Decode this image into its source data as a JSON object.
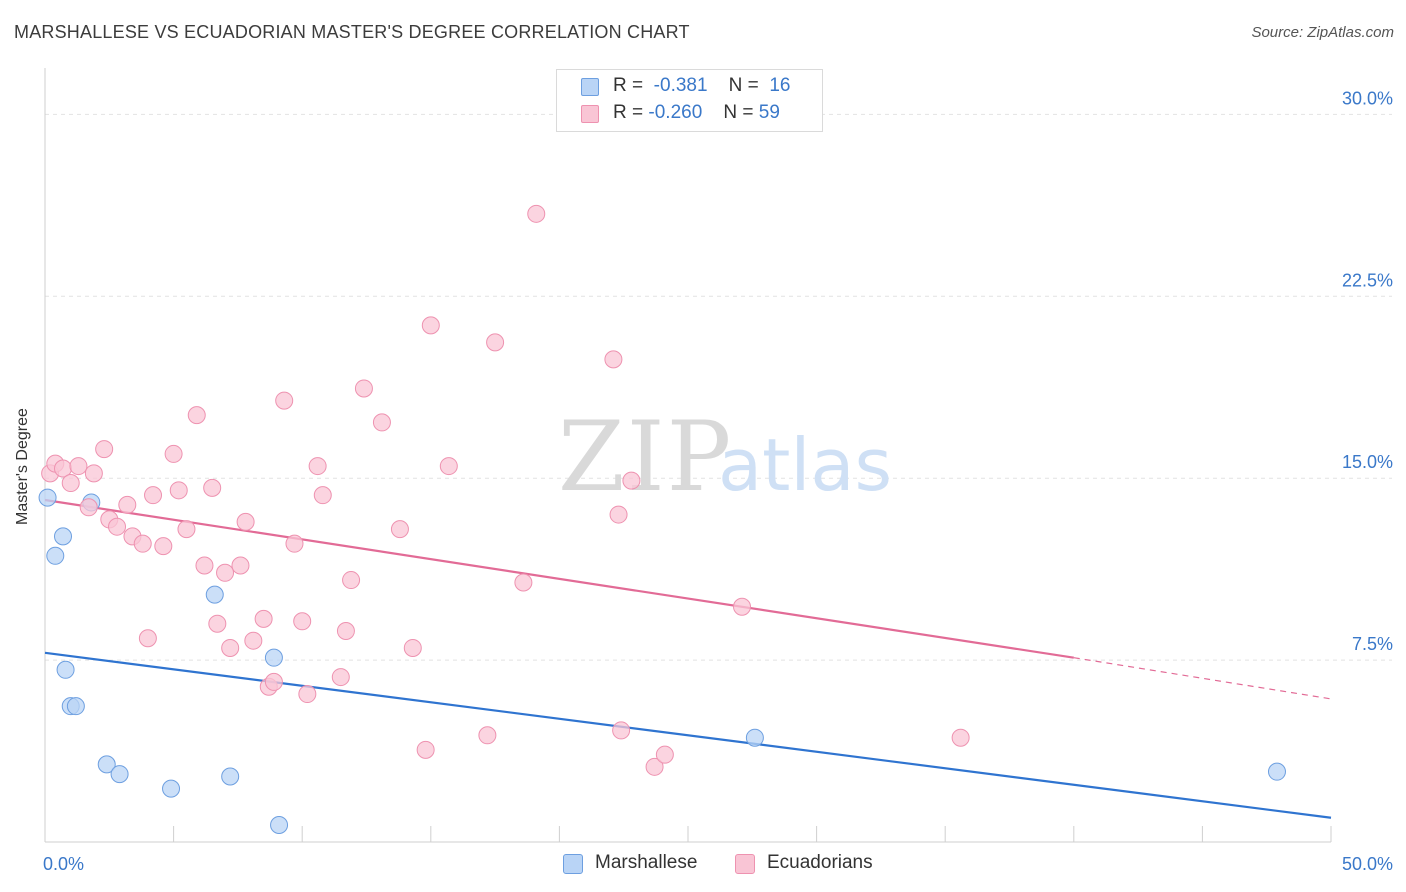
{
  "header": {
    "title": "MARSHALLESE VS ECUADORIAN MASTER'S DEGREE CORRELATION CHART",
    "source": "Source: ZipAtlas.com"
  },
  "watermark": {
    "zip": "ZIP",
    "atlas": "atlas"
  },
  "legend": {
    "rows": [
      {
        "r_label": "R =",
        "r_value": "-0.381",
        "n_label": "N =",
        "n_value": "16"
      },
      {
        "r_label": "R =",
        "r_value": "-0.260",
        "n_label": "N =",
        "n_value": "59"
      }
    ]
  },
  "bottom_legend": {
    "series1": "Marshallese",
    "series2": "Ecuadorians"
  },
  "chart_data": {
    "type": "scatter",
    "xlabel": "",
    "ylabel": "Master's Degree",
    "xlim": [
      0,
      50
    ],
    "ylim": [
      0,
      31.5
    ],
    "x_tick_labels": [
      "0.0%",
      "50.0%"
    ],
    "y_ticks": [
      7.5,
      15.0,
      22.5,
      30.0
    ],
    "y_tick_labels": [
      "7.5%",
      "15.0%",
      "22.5%",
      "30.0%"
    ],
    "grid": true,
    "legend_position": "top-center",
    "colors": {
      "series1_fill": "#b9d4f6",
      "series1_stroke": "#6d9fe0",
      "series1_line": "#2f74d0",
      "series2_fill": "#f9c5d5",
      "series2_stroke": "#ee92b0",
      "series2_line": "#e26b96",
      "tick_label": "#3a78c9"
    },
    "series": [
      {
        "name": "Marshallese",
        "points": [
          [
            0.1,
            14.2
          ],
          [
            0.4,
            11.8
          ],
          [
            0.7,
            12.6
          ],
          [
            0.8,
            7.1
          ],
          [
            1.0,
            5.6
          ],
          [
            1.2,
            5.6
          ],
          [
            1.8,
            14.0
          ],
          [
            2.4,
            3.2
          ],
          [
            2.9,
            2.8
          ],
          [
            4.9,
            2.2
          ],
          [
            6.6,
            10.2
          ],
          [
            7.2,
            2.7
          ],
          [
            8.9,
            7.6
          ],
          [
            9.1,
            0.7
          ],
          [
            27.6,
            4.3
          ],
          [
            47.9,
            2.9
          ]
        ],
        "trend": {
          "x": [
            0,
            50
          ],
          "y": [
            7.8,
            1.0
          ]
        }
      },
      {
        "name": "Ecuadorians",
        "points": [
          [
            0.2,
            15.2
          ],
          [
            0.4,
            15.6
          ],
          [
            0.7,
            15.4
          ],
          [
            1.0,
            14.8
          ],
          [
            1.3,
            15.5
          ],
          [
            1.7,
            13.8
          ],
          [
            1.9,
            15.2
          ],
          [
            2.3,
            16.2
          ],
          [
            2.5,
            13.3
          ],
          [
            2.8,
            13.0
          ],
          [
            3.2,
            13.9
          ],
          [
            3.4,
            12.6
          ],
          [
            3.8,
            12.3
          ],
          [
            4.0,
            8.4
          ],
          [
            4.2,
            14.3
          ],
          [
            4.6,
            12.2
          ],
          [
            5.0,
            16.0
          ],
          [
            5.2,
            14.5
          ],
          [
            5.5,
            12.9
          ],
          [
            5.9,
            17.6
          ],
          [
            6.2,
            11.4
          ],
          [
            6.5,
            14.6
          ],
          [
            6.7,
            9.0
          ],
          [
            7.0,
            11.1
          ],
          [
            7.2,
            8.0
          ],
          [
            7.6,
            11.4
          ],
          [
            7.8,
            13.2
          ],
          [
            8.1,
            8.3
          ],
          [
            8.5,
            9.2
          ],
          [
            8.7,
            6.4
          ],
          [
            8.9,
            6.6
          ],
          [
            9.3,
            18.2
          ],
          [
            9.7,
            12.3
          ],
          [
            10.0,
            9.1
          ],
          [
            10.2,
            6.1
          ],
          [
            10.6,
            15.5
          ],
          [
            10.8,
            14.3
          ],
          [
            11.5,
            6.8
          ],
          [
            11.7,
            8.7
          ],
          [
            11.9,
            10.8
          ],
          [
            12.4,
            18.7
          ],
          [
            13.1,
            17.3
          ],
          [
            13.8,
            12.9
          ],
          [
            14.3,
            8.0
          ],
          [
            14.8,
            3.8
          ],
          [
            15.0,
            21.3
          ],
          [
            15.7,
            15.5
          ],
          [
            17.2,
            4.4
          ],
          [
            17.5,
            20.6
          ],
          [
            18.6,
            10.7
          ],
          [
            19.1,
            25.9
          ],
          [
            22.1,
            19.9
          ],
          [
            22.3,
            13.5
          ],
          [
            22.4,
            4.6
          ],
          [
            22.8,
            14.9
          ],
          [
            23.7,
            3.1
          ],
          [
            24.1,
            3.6
          ],
          [
            27.1,
            9.7
          ],
          [
            35.6,
            4.3
          ]
        ],
        "trend": {
          "x": [
            0,
            40
          ],
          "y": [
            14.1,
            7.6
          ]
        },
        "trend_dashed": {
          "x": [
            40,
            50
          ],
          "y": [
            7.6,
            5.9
          ]
        }
      }
    ]
  }
}
